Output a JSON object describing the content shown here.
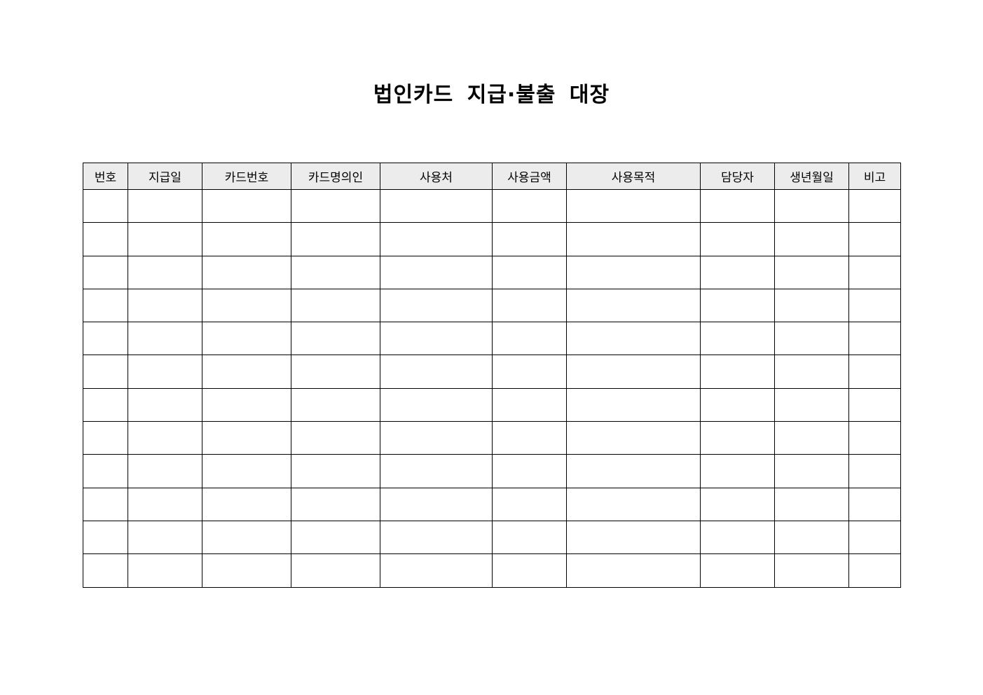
{
  "document": {
    "title": "법인카드 지급·불출 대장",
    "header_bg": "#ececec",
    "columns": [
      "번호",
      "지급일",
      "카드번호",
      "카드명의인",
      "사용처",
      "사용금액",
      "사용목적",
      "담당자",
      "생년월일",
      "비고"
    ],
    "rows": [
      [
        "",
        "",
        "",
        "",
        "",
        "",
        "",
        "",
        "",
        ""
      ],
      [
        "",
        "",
        "",
        "",
        "",
        "",
        "",
        "",
        "",
        ""
      ],
      [
        "",
        "",
        "",
        "",
        "",
        "",
        "",
        "",
        "",
        ""
      ],
      [
        "",
        "",
        "",
        "",
        "",
        "",
        "",
        "",
        "",
        ""
      ],
      [
        "",
        "",
        "",
        "",
        "",
        "",
        "",
        "",
        "",
        ""
      ],
      [
        "",
        "",
        "",
        "",
        "",
        "",
        "",
        "",
        "",
        ""
      ],
      [
        "",
        "",
        "",
        "",
        "",
        "",
        "",
        "",
        "",
        ""
      ],
      [
        "",
        "",
        "",
        "",
        "",
        "",
        "",
        "",
        "",
        ""
      ],
      [
        "",
        "",
        "",
        "",
        "",
        "",
        "",
        "",
        "",
        ""
      ],
      [
        "",
        "",
        "",
        "",
        "",
        "",
        "",
        "",
        "",
        ""
      ],
      [
        "",
        "",
        "",
        "",
        "",
        "",
        "",
        "",
        "",
        ""
      ],
      [
        "",
        "",
        "",
        "",
        "",
        "",
        "",
        "",
        "",
        ""
      ]
    ]
  }
}
